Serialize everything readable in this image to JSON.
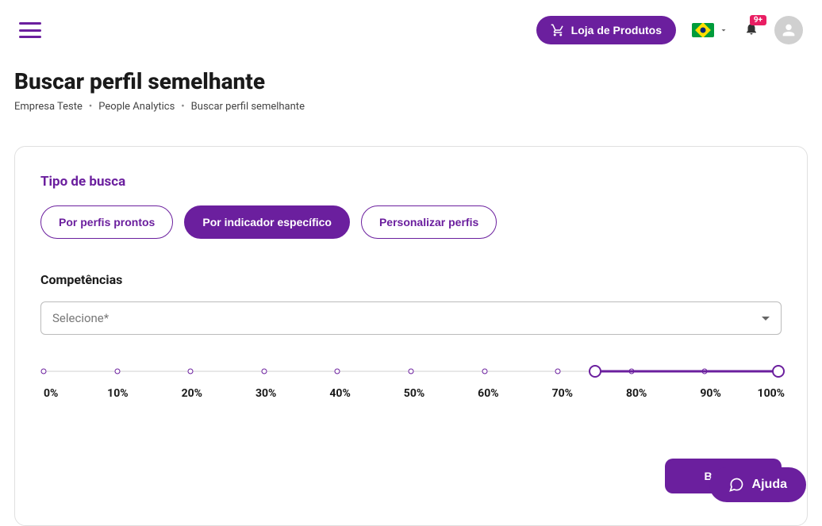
{
  "header": {
    "store_button": "Loja de Produtos",
    "notification_badge": "9+"
  },
  "page": {
    "title": "Buscar perfil semelhante"
  },
  "breadcrumb": {
    "items": [
      "Empresa Teste",
      "People Analytics",
      "Buscar perfil semelhante"
    ]
  },
  "card": {
    "search_type_label": "Tipo de busca",
    "tabs": {
      "ready": "Por perfis prontos",
      "indicator": "Por indicador específico",
      "custom": "Personalizar perfis"
    },
    "competencies_label": "Competências",
    "select_placeholder": "Selecione*",
    "slider": {
      "ticks": [
        "0%",
        "10%",
        "20%",
        "30%",
        "40%",
        "50%",
        "60%",
        "70%",
        "80%",
        "90%",
        "100%"
      ],
      "min_pct": 75,
      "max_pct": 100
    },
    "search_button": "Buscar"
  },
  "help": {
    "label": "Ajuda"
  }
}
